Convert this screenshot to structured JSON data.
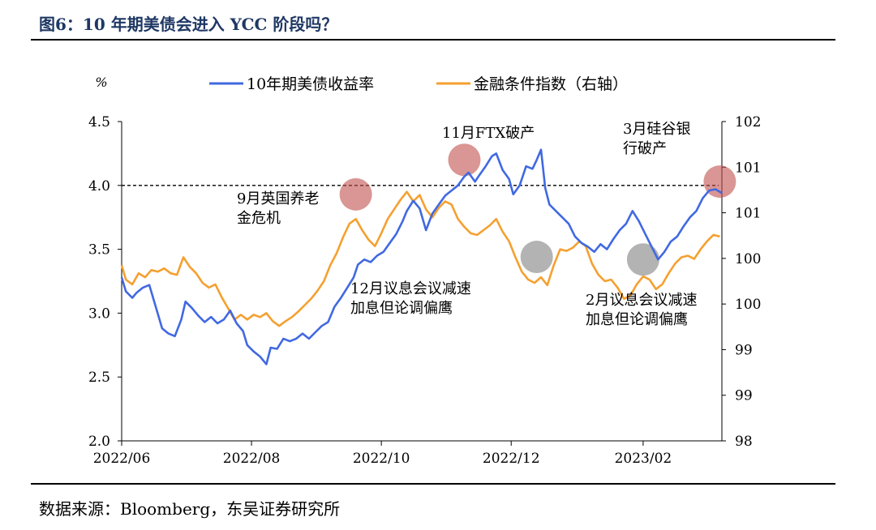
{
  "page": {
    "title": "图6：10 年期美债会进入 YCC 阶段吗？",
    "source": "数据来源：Bloomberg，东吴证券研究所"
  },
  "chart_data": {
    "type": "line",
    "ylabel_left": "%",
    "ylim_left": [
      2.0,
      4.5
    ],
    "yticks_left": [
      "2.0",
      "2.5",
      "3.0",
      "3.5",
      "4.0",
      "4.5"
    ],
    "ylim_right": [
      98,
      102
    ],
    "yticks_right": [
      "98",
      "99",
      "99",
      "100",
      "100",
      "101",
      "101",
      "102"
    ],
    "xlim": [
      "2022-06-01",
      "2023-03-10"
    ],
    "xticks": [
      "2022/06",
      "2022/08",
      "2022/10",
      "2022/12",
      "2023/02"
    ],
    "reference_line": {
      "y": 4.0,
      "style": "dashed"
    },
    "legend": {
      "position": "top"
    },
    "colors": {
      "yield": "#4169e1",
      "fci": "#f5a030",
      "circle_red": "#c0504d",
      "circle_gray": "#808080"
    },
    "series": [
      {
        "name": "10年期美债收益率",
        "axis": "left",
        "points": [
          [
            "2022-06-01",
            3.28
          ],
          [
            "2022-06-03",
            3.17
          ],
          [
            "2022-06-06",
            3.12
          ],
          [
            "2022-06-08",
            3.16
          ],
          [
            "2022-06-11",
            3.2
          ],
          [
            "2022-06-14",
            3.22
          ],
          [
            "2022-06-17",
            3.05
          ],
          [
            "2022-06-20",
            2.88
          ],
          [
            "2022-06-23",
            2.84
          ],
          [
            "2022-06-26",
            2.82
          ],
          [
            "2022-06-29",
            2.95
          ],
          [
            "2022-07-01",
            3.09
          ],
          [
            "2022-07-04",
            3.04
          ],
          [
            "2022-07-07",
            2.98
          ],
          [
            "2022-07-10",
            2.93
          ],
          [
            "2022-07-13",
            2.97
          ],
          [
            "2022-07-16",
            2.92
          ],
          [
            "2022-07-19",
            2.95
          ],
          [
            "2022-07-22",
            3.02
          ],
          [
            "2022-07-25",
            2.92
          ],
          [
            "2022-07-28",
            2.86
          ],
          [
            "2022-07-30",
            2.75
          ],
          [
            "2022-08-02",
            2.7
          ],
          [
            "2022-08-05",
            2.66
          ],
          [
            "2022-08-08",
            2.6
          ],
          [
            "2022-08-10",
            2.73
          ],
          [
            "2022-08-13",
            2.72
          ],
          [
            "2022-08-16",
            2.8
          ],
          [
            "2022-08-19",
            2.78
          ],
          [
            "2022-08-22",
            2.8
          ],
          [
            "2022-08-25",
            2.84
          ],
          [
            "2022-08-28",
            2.8
          ],
          [
            "2022-08-31",
            2.85
          ],
          [
            "2022-09-03",
            2.9
          ],
          [
            "2022-09-06",
            2.93
          ],
          [
            "2022-09-09",
            3.05
          ],
          [
            "2022-09-12",
            3.12
          ],
          [
            "2022-09-15",
            3.2
          ],
          [
            "2022-09-18",
            3.28
          ],
          [
            "2022-09-20",
            3.38
          ],
          [
            "2022-09-23",
            3.42
          ],
          [
            "2022-09-26",
            3.4
          ],
          [
            "2022-09-29",
            3.45
          ],
          [
            "2022-10-02",
            3.48
          ],
          [
            "2022-10-05",
            3.55
          ],
          [
            "2022-10-08",
            3.62
          ],
          [
            "2022-10-11",
            3.72
          ],
          [
            "2022-10-13",
            3.8
          ],
          [
            "2022-10-16",
            3.88
          ],
          [
            "2022-10-19",
            3.82
          ],
          [
            "2022-10-22",
            3.65
          ],
          [
            "2022-10-25",
            3.78
          ],
          [
            "2022-10-28",
            3.85
          ],
          [
            "2022-10-31",
            3.92
          ],
          [
            "2022-11-03",
            3.96
          ],
          [
            "2022-11-06",
            4.0
          ],
          [
            "2022-11-09",
            4.07
          ],
          [
            "2022-11-11",
            4.1
          ],
          [
            "2022-11-14",
            4.03
          ],
          [
            "2022-11-16",
            4.08
          ],
          [
            "2022-11-19",
            4.15
          ],
          [
            "2022-11-22",
            4.23
          ],
          [
            "2022-11-24",
            4.25
          ],
          [
            "2022-11-27",
            4.12
          ],
          [
            "2022-11-30",
            4.05
          ],
          [
            "2022-12-02",
            3.93
          ],
          [
            "2022-12-05",
            4.0
          ],
          [
            "2022-12-08",
            4.15
          ],
          [
            "2022-12-11",
            4.13
          ],
          [
            "2022-12-13",
            4.2
          ],
          [
            "2022-12-15",
            4.28
          ],
          [
            "2022-12-17",
            3.98
          ],
          [
            "2022-12-19",
            3.85
          ],
          [
            "2022-12-22",
            3.8
          ],
          [
            "2022-12-25",
            3.75
          ],
          [
            "2022-12-28",
            3.7
          ],
          [
            "2022-12-31",
            3.6
          ],
          [
            "2023-01-03",
            3.55
          ],
          [
            "2023-01-06",
            3.52
          ],
          [
            "2023-01-09",
            3.48
          ],
          [
            "2023-01-12",
            3.54
          ],
          [
            "2023-01-15",
            3.5
          ],
          [
            "2023-01-18",
            3.58
          ],
          [
            "2023-01-21",
            3.65
          ],
          [
            "2023-01-24",
            3.7
          ],
          [
            "2023-01-27",
            3.8
          ],
          [
            "2023-01-30",
            3.72
          ],
          [
            "2023-02-02",
            3.62
          ],
          [
            "2023-02-05",
            3.52
          ],
          [
            "2023-02-08",
            3.42
          ],
          [
            "2023-02-11",
            3.48
          ],
          [
            "2023-02-14",
            3.56
          ],
          [
            "2023-02-17",
            3.6
          ],
          [
            "2023-02-20",
            3.68
          ],
          [
            "2023-02-23",
            3.75
          ],
          [
            "2023-02-26",
            3.8
          ],
          [
            "2023-03-01",
            3.9
          ],
          [
            "2023-03-04",
            3.96
          ],
          [
            "2023-03-07",
            3.97
          ],
          [
            "2023-03-10",
            3.94
          ]
        ]
      },
      {
        "name": "金融条件指数（右轴）",
        "axis": "right",
        "points": [
          [
            "2022-06-01",
            100.2
          ],
          [
            "2022-06-03",
            100.02
          ],
          [
            "2022-06-06",
            99.96
          ],
          [
            "2022-06-09",
            100.1
          ],
          [
            "2022-06-12",
            100.05
          ],
          [
            "2022-06-15",
            100.14
          ],
          [
            "2022-06-18",
            100.12
          ],
          [
            "2022-06-21",
            100.16
          ],
          [
            "2022-06-24",
            100.1
          ],
          [
            "2022-06-27",
            100.08
          ],
          [
            "2022-06-30",
            100.3
          ],
          [
            "2022-07-03",
            100.18
          ],
          [
            "2022-07-06",
            100.1
          ],
          [
            "2022-07-09",
            99.98
          ],
          [
            "2022-07-12",
            99.92
          ],
          [
            "2022-07-15",
            99.96
          ],
          [
            "2022-07-18",
            99.8
          ],
          [
            "2022-07-21",
            99.66
          ],
          [
            "2022-07-24",
            99.52
          ],
          [
            "2022-07-27",
            99.58
          ],
          [
            "2022-07-30",
            99.52
          ],
          [
            "2022-08-02",
            99.58
          ],
          [
            "2022-08-05",
            99.55
          ],
          [
            "2022-08-08",
            99.6
          ],
          [
            "2022-08-11",
            99.5
          ],
          [
            "2022-08-14",
            99.44
          ],
          [
            "2022-08-17",
            99.5
          ],
          [
            "2022-08-20",
            99.55
          ],
          [
            "2022-08-23",
            99.62
          ],
          [
            "2022-08-26",
            99.7
          ],
          [
            "2022-08-29",
            99.78
          ],
          [
            "2022-09-01",
            99.88
          ],
          [
            "2022-09-04",
            100.0
          ],
          [
            "2022-09-07",
            100.2
          ],
          [
            "2022-09-10",
            100.35
          ],
          [
            "2022-09-13",
            100.55
          ],
          [
            "2022-09-16",
            100.72
          ],
          [
            "2022-09-19",
            100.78
          ],
          [
            "2022-09-22",
            100.64
          ],
          [
            "2022-09-25",
            100.52
          ],
          [
            "2022-09-28",
            100.44
          ],
          [
            "2022-10-01",
            100.6
          ],
          [
            "2022-10-04",
            100.78
          ],
          [
            "2022-10-07",
            100.9
          ],
          [
            "2022-10-10",
            101.02
          ],
          [
            "2022-10-13",
            101.12
          ],
          [
            "2022-10-16",
            101.0
          ],
          [
            "2022-10-19",
            101.08
          ],
          [
            "2022-10-22",
            100.9
          ],
          [
            "2022-10-25",
            100.8
          ],
          [
            "2022-10-28",
            100.92
          ],
          [
            "2022-10-31",
            101.0
          ],
          [
            "2022-11-03",
            100.96
          ],
          [
            "2022-11-06",
            100.78
          ],
          [
            "2022-11-09",
            100.68
          ],
          [
            "2022-11-12",
            100.6
          ],
          [
            "2022-11-15",
            100.58
          ],
          [
            "2022-11-18",
            100.64
          ],
          [
            "2022-11-21",
            100.7
          ],
          [
            "2022-11-24",
            100.78
          ],
          [
            "2022-11-27",
            100.62
          ],
          [
            "2022-11-30",
            100.5
          ],
          [
            "2022-12-03",
            100.3
          ],
          [
            "2022-12-06",
            100.12
          ],
          [
            "2022-12-09",
            100.02
          ],
          [
            "2022-12-12",
            99.98
          ],
          [
            "2022-12-15",
            100.05
          ],
          [
            "2022-12-18",
            99.95
          ],
          [
            "2022-12-21",
            100.2
          ],
          [
            "2022-12-24",
            100.4
          ],
          [
            "2022-12-27",
            100.38
          ],
          [
            "2022-12-30",
            100.42
          ],
          [
            "2023-01-02",
            100.5
          ],
          [
            "2023-01-05",
            100.44
          ],
          [
            "2023-01-08",
            100.22
          ],
          [
            "2023-01-11",
            100.08
          ],
          [
            "2023-01-14",
            100.0
          ],
          [
            "2023-01-17",
            100.02
          ],
          [
            "2023-01-20",
            99.92
          ],
          [
            "2023-01-23",
            99.78
          ],
          [
            "2023-01-26",
            99.82
          ],
          [
            "2023-01-29",
            99.96
          ],
          [
            "2023-02-01",
            100.06
          ],
          [
            "2023-02-04",
            100.02
          ],
          [
            "2023-02-07",
            99.9
          ],
          [
            "2023-02-10",
            99.96
          ],
          [
            "2023-02-13",
            100.1
          ],
          [
            "2023-02-16",
            100.22
          ],
          [
            "2023-02-19",
            100.3
          ],
          [
            "2023-02-22",
            100.32
          ],
          [
            "2023-02-25",
            100.28
          ],
          [
            "2023-02-28",
            100.4
          ],
          [
            "2023-03-03",
            100.5
          ],
          [
            "2023-03-06",
            100.58
          ],
          [
            "2023-03-09",
            100.56
          ]
        ]
      }
    ],
    "annotations": [
      {
        "text": [
          "9月英国养老",
          "金危机"
        ],
        "circle_x": "2022-09-19",
        "circle_y": 3.93,
        "circle_color": "red"
      },
      {
        "text": [
          "11月FTX破产"
        ],
        "circle_x": "2022-11-09",
        "circle_y": 4.2,
        "circle_color": "red"
      },
      {
        "text": [
          "12月议息会议减速",
          "加息但论调偏鹰"
        ],
        "circle_x": "2022-12-13",
        "circle_y": 3.44,
        "circle_color": "gray"
      },
      {
        "text": [
          "2月议息会议减速",
          "加息但论调偏鹰"
        ],
        "circle_x": "2023-02-01",
        "circle_y": 3.42,
        "circle_color": "gray"
      },
      {
        "text": [
          "3月硅谷银",
          "行破产"
        ],
        "circle_x": "2023-03-09",
        "circle_y": 4.03,
        "circle_color": "red"
      }
    ]
  }
}
